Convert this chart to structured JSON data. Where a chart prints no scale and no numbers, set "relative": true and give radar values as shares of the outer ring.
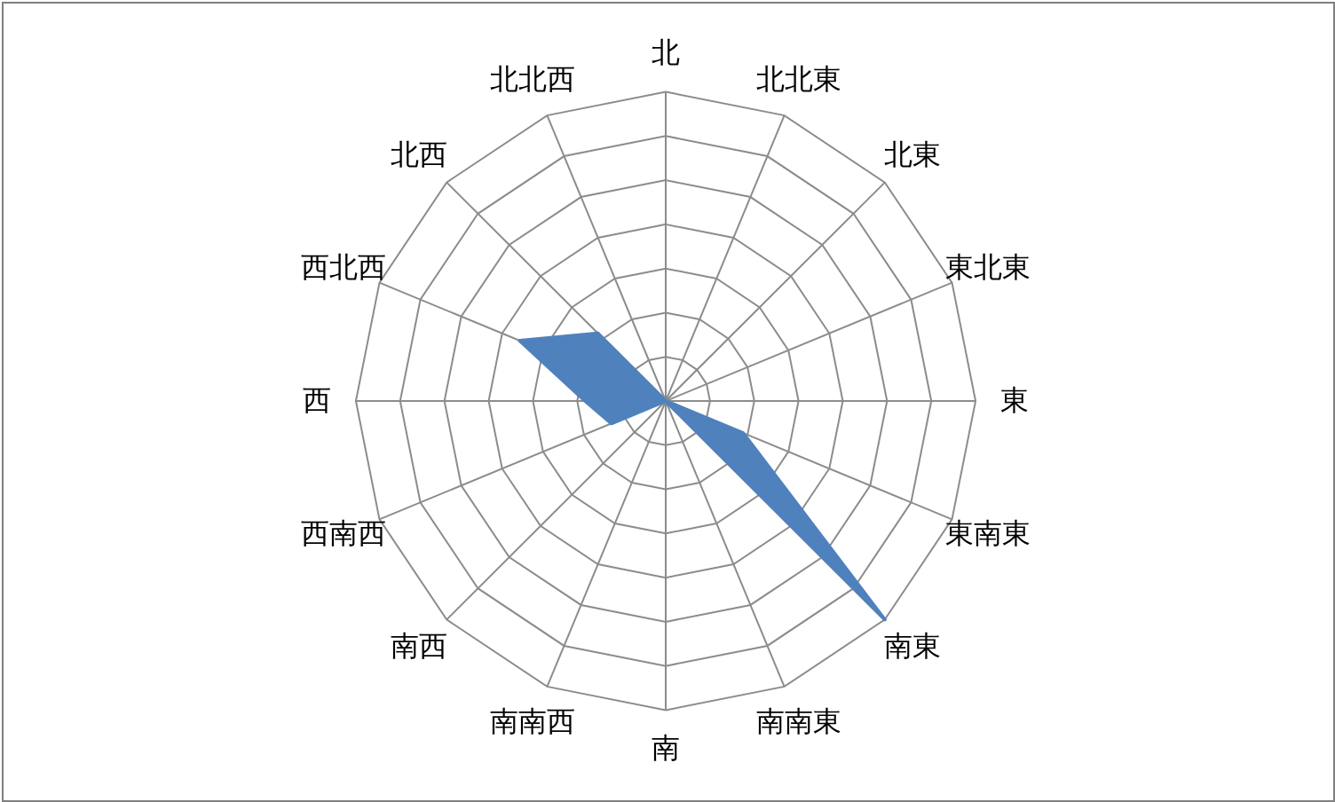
{
  "chart_data": {
    "type": "radar",
    "relative": true,
    "grid": true,
    "categories": [
      "北",
      "北北東",
      "北東",
      "東北東",
      "東",
      "東南東",
      "南東",
      "南南東",
      "南",
      "南南西",
      "南西",
      "西南西",
      "西",
      "西北西",
      "北西",
      "北北西"
    ],
    "series": [
      {
        "color": "#4f81bd",
        "values": [
          0,
          0,
          0,
          0,
          0,
          0.27,
          1,
          0,
          0,
          0,
          0,
          0.19,
          0.26,
          0.51,
          0.31,
          0
        ]
      }
    ]
  }
}
